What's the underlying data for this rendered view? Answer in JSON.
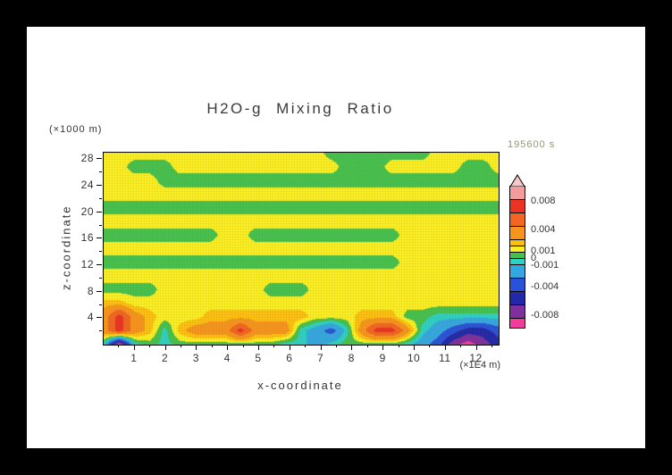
{
  "colors": {
    "background": "#000000",
    "paper": "#FFFFFF",
    "axis_text": "#333333",
    "title_text": "#3A3A3A",
    "time_label": "#8F9675"
  },
  "chart_data": {
    "type": "heatmap",
    "title": "H2O-g Mixing Ratio",
    "time_label": "195600 s",
    "xlabel": "x-coordinate",
    "x_unit": "(×1E4 m)",
    "ylabel": "z-coordinate",
    "y_unit": "(×1000 m)",
    "x_range": [
      0,
      12.7
    ],
    "z_range": [
      0,
      29
    ],
    "x_ticks": [
      1,
      2,
      3,
      4,
      5,
      6,
      7,
      8,
      9,
      10,
      11,
      12
    ],
    "x_minor_ticks": [
      0.5,
      1.5,
      2.5,
      3.5,
      4.5,
      5.5,
      6.5,
      7.5,
      8.5,
      9.5,
      10.5,
      11.5,
      12.5
    ],
    "z_ticks": [
      4,
      8,
      12,
      16,
      20,
      24,
      28
    ],
    "z_minor_ticks": [
      2,
      6,
      10,
      14,
      18,
      22,
      26
    ],
    "value_scale": 0.001,
    "levels": [
      -0.01,
      -0.008,
      -0.006,
      -0.004,
      -0.002,
      -0.001,
      0,
      0.001,
      0.002,
      0.004,
      0.006,
      0.008,
      0.01
    ],
    "level_colors": [
      "#F13C9E",
      "#7F2F9E",
      "#2328A8",
      "#2A52D8",
      "#35A7E0",
      "#2ED0C4",
      "#46C14E",
      "#FBEE23",
      "#FDC010",
      "#F7941D",
      "#F26522",
      "#EA3323",
      "#F49C9C",
      "#F6C7CB"
    ],
    "grid_x": [
      0,
      0.5,
      1,
      1.5,
      2,
      2.5,
      3,
      3.5,
      4,
      4.5,
      5,
      5.5,
      6,
      6.5,
      7,
      7.5,
      8,
      8.5,
      9,
      9.5,
      10,
      10.5,
      11,
      11.5,
      12,
      12.5,
      13
    ],
    "grid_z": [
      29,
      27,
      25,
      23,
      21,
      19,
      17,
      15,
      13,
      11,
      9,
      7,
      5,
      3,
      1
    ],
    "values": [
      [
        0.5,
        0.5,
        0.5,
        0.5,
        0.5,
        0.5,
        0.5,
        0.5,
        0.5,
        0.5,
        0.5,
        0.5,
        0.5,
        0.5,
        0.5,
        -0.5,
        -0.5,
        -0.5,
        -0.5,
        -0.5,
        -0.5,
        -0.5,
        0.5,
        0.5,
        0.5,
        0.5,
        0.5
      ],
      [
        0.5,
        0.5,
        -0.5,
        -0.5,
        -0.5,
        0.5,
        0.5,
        0.5,
        0.5,
        0.5,
        0.5,
        0.5,
        0.5,
        0.5,
        0.5,
        0.5,
        -0.5,
        -0.5,
        -0.5,
        0.5,
        0.5,
        0.5,
        0.5,
        0.5,
        -0.5,
        -0.5,
        0.5
      ],
      [
        0.5,
        0.5,
        0.5,
        0.5,
        -0.5,
        -0.5,
        -0.5,
        -0.5,
        -0.5,
        -0.5,
        -0.5,
        -0.5,
        -0.5,
        -0.5,
        -0.5,
        -0.5,
        -0.5,
        -0.5,
        -0.5,
        -0.5,
        -0.5,
        -0.5,
        -0.5,
        -0.5,
        -0.5,
        -0.5,
        -0.5
      ],
      [
        0.5,
        0.5,
        0.5,
        0.5,
        0.5,
        0.5,
        0.5,
        0.5,
        0.5,
        0.5,
        0.5,
        0.5,
        0.5,
        0.5,
        0.5,
        0.5,
        0.5,
        0.5,
        0.5,
        0.5,
        0.5,
        0.5,
        0.5,
        0.5,
        0.5,
        0.5,
        0.5
      ],
      [
        -0.5,
        -0.5,
        -0.5,
        -0.5,
        -0.5,
        -0.5,
        -0.5,
        -0.5,
        -0.5,
        -0.5,
        -0.5,
        -0.5,
        -0.5,
        -0.5,
        -0.5,
        -0.5,
        -0.5,
        -0.5,
        -0.5,
        -0.5,
        -0.5,
        -0.5,
        -0.5,
        -0.5,
        -0.5,
        -0.5,
        -0.5
      ],
      [
        0.5,
        0.5,
        0.5,
        0.5,
        0.5,
        0.5,
        0.5,
        0.5,
        0.5,
        0.5,
        0.5,
        0.5,
        0.5,
        0.5,
        0.5,
        0.5,
        0.5,
        0.5,
        0.5,
        0.5,
        0.5,
        0.5,
        0.5,
        0.5,
        0.5,
        0.5,
        0.5
      ],
      [
        -0.5,
        -0.5,
        -0.5,
        -0.5,
        -0.5,
        -0.5,
        -0.5,
        -0.5,
        0.5,
        0.5,
        -0.5,
        -0.5,
        -0.5,
        -0.5,
        -0.5,
        -0.5,
        -0.5,
        -0.5,
        -0.5,
        -0.5,
        0.5,
        0.5,
        0.5,
        0.5,
        0.5,
        0.5,
        0.5
      ],
      [
        0.5,
        0.5,
        0.5,
        0.5,
        0.5,
        0.5,
        0.5,
        0.5,
        0.5,
        0.5,
        0.5,
        0.5,
        0.5,
        0.5,
        0.5,
        0.5,
        0.5,
        0.5,
        0.5,
        0.5,
        0.5,
        0.5,
        0.5,
        0.5,
        0.5,
        0.5,
        0.5
      ],
      [
        -0.5,
        -0.5,
        -0.5,
        -0.5,
        -0.5,
        -0.5,
        -0.5,
        -0.5,
        -0.5,
        -0.5,
        -0.5,
        -0.5,
        -0.5,
        -0.5,
        -0.5,
        -0.5,
        -0.5,
        -0.5,
        -0.5,
        -0.5,
        0.5,
        0.5,
        0.5,
        0.5,
        0.5,
        0.5,
        0.5
      ],
      [
        0.5,
        0.5,
        0.5,
        0.5,
        0.5,
        0.5,
        0.5,
        0.5,
        0.5,
        0.5,
        0.5,
        0.5,
        0.5,
        0.5,
        0.5,
        0.5,
        0.5,
        0.5,
        0.5,
        0.5,
        0.5,
        0.5,
        0.5,
        0.5,
        0.5,
        0.5,
        0.5
      ],
      [
        -0.5,
        -0.5,
        -0.5,
        -0.5,
        0.5,
        0.5,
        0.5,
        0.5,
        0.5,
        0.5,
        0.5,
        -0.5,
        -0.5,
        -0.5,
        0.5,
        0.5,
        0.5,
        0.5,
        0.5,
        0.5,
        0.5,
        0.5,
        0.5,
        0.5,
        0.5,
        0.5,
        0.5
      ],
      [
        1.5,
        1.5,
        0.5,
        0.5,
        0.5,
        0.5,
        0.5,
        0.5,
        0.5,
        0.5,
        0.5,
        0.5,
        0.5,
        0.5,
        0.5,
        0.5,
        0.5,
        0.5,
        0.5,
        0.5,
        0.5,
        0.5,
        0.5,
        0.5,
        0.5,
        0.5,
        0.5
      ],
      [
        3,
        7,
        3,
        1.5,
        0.5,
        0.5,
        0.5,
        1.5,
        1.5,
        1.5,
        1.5,
        1.5,
        1.5,
        1.5,
        0.5,
        0.5,
        0.5,
        1.5,
        1.5,
        1.5,
        -0.5,
        -0.5,
        -1.5,
        -1.5,
        -1.5,
        -1.5,
        -1.5
      ],
      [
        3,
        7,
        3,
        1.5,
        -1.5,
        1.5,
        3,
        3,
        3,
        7,
        3,
        3,
        3,
        -1.5,
        -3,
        -5,
        -1.5,
        3,
        7,
        7,
        3,
        -1.5,
        -3,
        -5,
        -7,
        -7,
        -5
      ],
      [
        -1.5,
        -11,
        -1.5,
        -0.5,
        -1.5,
        -0.5,
        -0.5,
        -0.5,
        -0.5,
        -0.5,
        -0.5,
        -0.5,
        -1.5,
        -1.5,
        -3,
        -1.5,
        -0.5,
        -0.5,
        -0.5,
        -0.5,
        -1.5,
        -3,
        -5,
        -9,
        -11,
        -9,
        -7
      ]
    ]
  },
  "colorbar": {
    "boundaries": [
      0.01,
      0.008,
      0.006,
      0.004,
      0.002,
      0.001,
      0,
      -0.001,
      -0.002,
      -0.004,
      -0.006,
      -0.008,
      -0.01,
      -0.0115
    ],
    "colors": [
      "#F49C9C",
      "#EA3323",
      "#F26522",
      "#F7941D",
      "#FDC010",
      "#FBEE23",
      "#46C14E",
      "#2ED0C4",
      "#35A7E0",
      "#2A52D8",
      "#2328A8",
      "#7F2F9E",
      "#F13C9E"
    ],
    "triangle_color": "#F6C7CB",
    "labels": [
      "0.008",
      "0.004",
      "0.001",
      "0",
      "-0.001",
      "-0.004",
      "-0.008"
    ]
  }
}
